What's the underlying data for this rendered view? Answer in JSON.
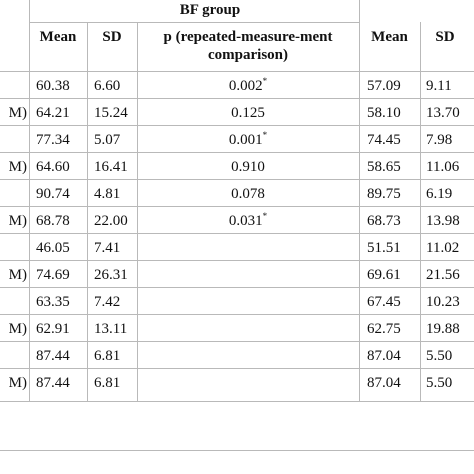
{
  "table": {
    "group_title": "BF group",
    "headers": {
      "mean": "Mean",
      "sd": "SD",
      "p_line1": "p (repeated-measure-ment",
      "p_line2": "comparison)",
      "mean2": "Mean",
      "sd2": "SD"
    },
    "rows": [
      {
        "label": "",
        "mean": "60.38",
        "sd": "6.60",
        "p": "0.002",
        "p_mark": "*",
        "mean2": "57.09",
        "sd2": "9.11"
      },
      {
        "label": "M)",
        "mean": "64.21",
        "sd": "15.24",
        "p": "0.125",
        "p_mark": "",
        "mean2": "58.10",
        "sd2": "13.70"
      },
      {
        "label": "",
        "mean": "77.34",
        "sd": "5.07",
        "p": "0.001",
        "p_mark": "*",
        "mean2": "74.45",
        "sd2": "7.98"
      },
      {
        "label": "M)",
        "mean": "64.60",
        "sd": "16.41",
        "p": "0.910",
        "p_mark": "",
        "mean2": "58.65",
        "sd2": "11.06"
      },
      {
        "label": "",
        "mean": "90.74",
        "sd": "4.81",
        "p": "0.078",
        "p_mark": "",
        "mean2": "89.75",
        "sd2": "6.19"
      },
      {
        "label": "M)",
        "mean": "68.78",
        "sd": "22.00",
        "p": "0.031",
        "p_mark": "*",
        "mean2": "68.73",
        "sd2": "13.98"
      },
      {
        "label": "",
        "mean": "46.05",
        "sd": "7.41",
        "p": "",
        "p_mark": "",
        "mean2": "51.51",
        "sd2": "11.02"
      },
      {
        "label": "M)",
        "mean": "74.69",
        "sd": "26.31",
        "p": "",
        "p_mark": "",
        "mean2": "69.61",
        "sd2": "21.56"
      },
      {
        "label": "",
        "mean": "63.35",
        "sd": "7.42",
        "p": "",
        "p_mark": "",
        "mean2": "67.45",
        "sd2": "10.23"
      },
      {
        "label": "M)",
        "mean": "62.91",
        "sd": "13.11",
        "p": "",
        "p_mark": "",
        "mean2": "62.75",
        "sd2": "19.88"
      },
      {
        "label": "",
        "mean": "87.44",
        "sd": "6.81",
        "p": "",
        "p_mark": "",
        "mean2": "87.04",
        "sd2": "5.50"
      },
      {
        "label": "M)",
        "mean": "87.44",
        "sd": "6.81",
        "p": "",
        "p_mark": "",
        "mean2": "87.04",
        "sd2": "5.50"
      }
    ]
  }
}
